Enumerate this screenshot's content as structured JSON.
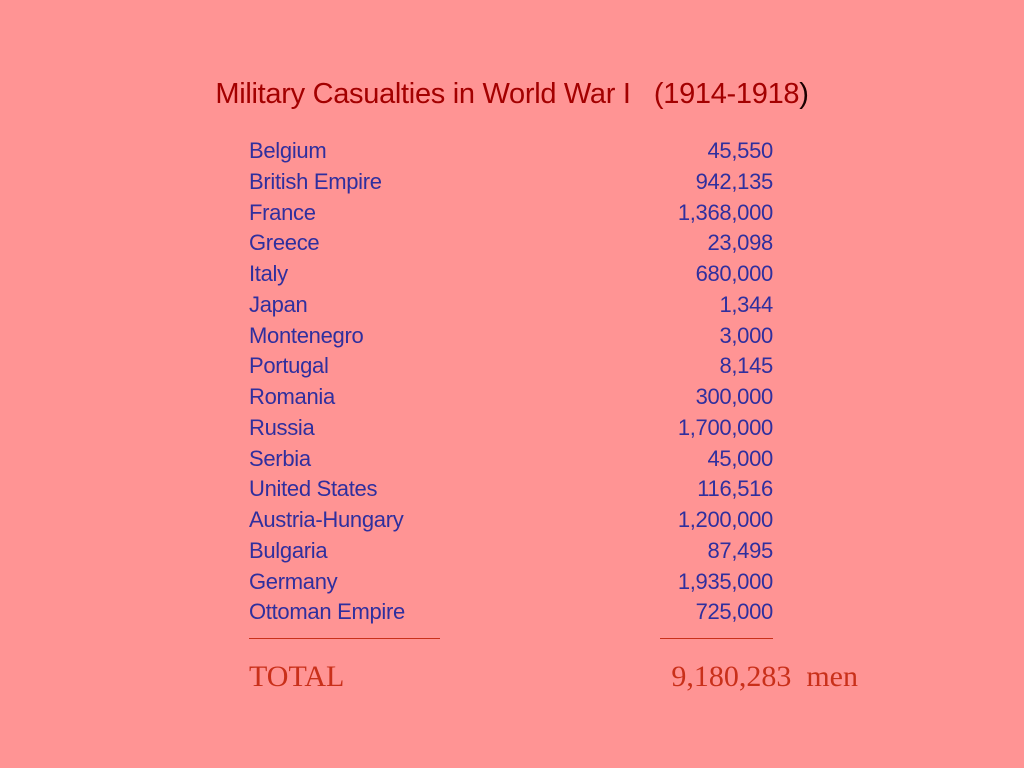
{
  "title": {
    "main": "Military Casualties in World War I   (1914-1918",
    "close_paren": ")"
  },
  "rows": [
    {
      "country": "Belgium",
      "count": "45,550"
    },
    {
      "country": "British Empire",
      "count": "942,135"
    },
    {
      "country": "France",
      "count": "1,368,000"
    },
    {
      "country": "Greece",
      "count": "23,098"
    },
    {
      "country": "Italy",
      "count": "680,000"
    },
    {
      "country": "Japan",
      "count": "1,344"
    },
    {
      "country": "Montenegro",
      "count": "3,000"
    },
    {
      "country": "Portugal",
      "count": "8,145"
    },
    {
      "country": "Romania",
      "count": "300,000"
    },
    {
      "country": "Russia",
      "count": "1,700,000"
    },
    {
      "country": "Serbia",
      "count": "45,000"
    },
    {
      "country": "United States",
      "count": "116,516"
    },
    {
      "country": "Austria-Hungary",
      "count": "1,200,000"
    },
    {
      "country": "Bulgaria",
      "count": "87,495"
    },
    {
      "country": "Germany",
      "count": "1,935,000"
    },
    {
      "country": "Ottoman Empire",
      "count": "725,000"
    }
  ],
  "total": {
    "label": "TOTAL",
    "value": "9,180,283  men"
  },
  "colors": {
    "background": "#ff9494",
    "title": "#a30000",
    "rows": "#2f2f9e",
    "total": "#c9301a"
  }
}
